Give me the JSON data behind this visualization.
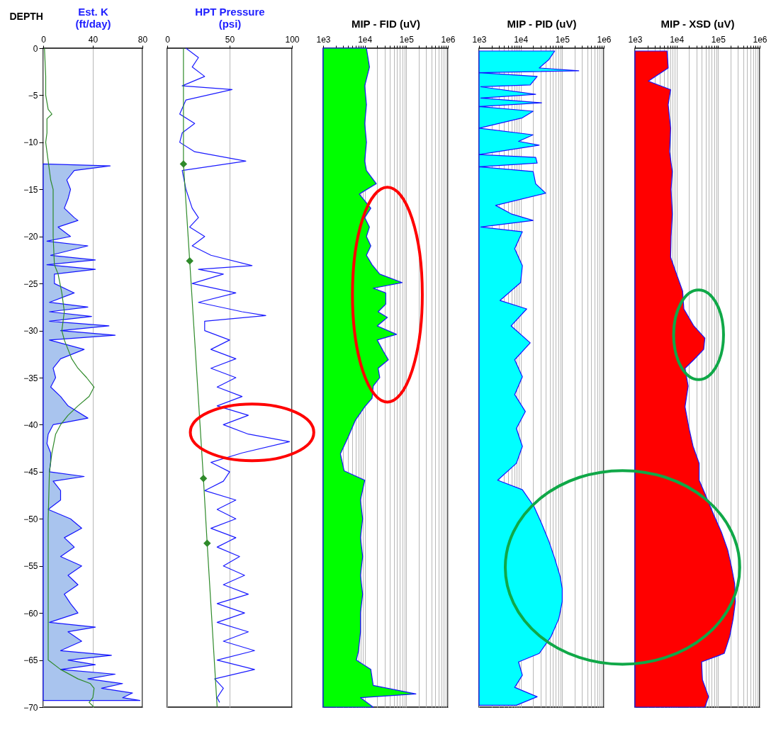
{
  "chart_data": [
    {
      "type": "area",
      "orientation": "horizontal",
      "xlabel": "Est. K\n(ft/day)",
      "ylabel": "DEPTH",
      "xlim": [
        0,
        80
      ],
      "xticks": [
        0,
        40,
        80
      ],
      "ylim": [
        -70,
        0
      ],
      "yticks": [
        0,
        -5,
        -10,
        -15,
        -20,
        -25,
        -30,
        -35,
        -40,
        -45,
        -50,
        -55,
        -60,
        -65,
        -70
      ],
      "grid": "x",
      "series": [
        {
          "color": "#a9c4ee",
          "x": [
            -12.3,
            -12.5,
            -13,
            -14,
            -15,
            -16,
            -17,
            -18,
            -18.3,
            -19,
            -20,
            -20.5,
            -21,
            -22,
            -22.5,
            -23,
            -23.5,
            -24,
            -25,
            -26,
            -27,
            -27.5,
            -28,
            -28.5,
            -29,
            -29.5,
            -30,
            -30.5,
            -31,
            -32,
            -33,
            -34,
            -35,
            -36,
            -37,
            -38,
            -39.3,
            -40,
            -41,
            -42,
            -43,
            -44,
            -45,
            -45.5,
            -46,
            -47,
            -48,
            -49,
            -50,
            -51,
            -52,
            -53,
            -54,
            -55,
            -56,
            -57,
            -58,
            -59,
            -60,
            -61,
            -61.5,
            -62,
            -63,
            -64,
            -64.5,
            -65,
            -65.5,
            -66,
            -66.5,
            -67,
            -67.5,
            -68,
            -68.5,
            -69,
            -69.3
          ],
          "values": [
            0,
            54,
            25,
            19,
            22,
            20,
            17,
            25,
            28,
            12,
            22,
            3,
            36,
            6,
            42,
            3,
            42,
            9,
            9,
            25,
            5,
            36,
            5,
            39,
            5,
            53,
            14,
            58,
            5,
            33,
            14,
            8,
            10,
            6,
            14,
            20,
            36,
            8,
            4,
            3,
            6,
            6,
            5,
            33,
            8,
            14,
            14,
            4,
            22,
            31,
            17,
            25,
            14,
            31,
            20,
            28,
            17,
            22,
            28,
            5,
            42,
            20,
            31,
            14,
            55,
            20,
            42,
            14,
            58,
            36,
            64,
            47,
            72,
            64,
            78
          ]
        },
        {
          "type": "line",
          "color": "#2f8a2a",
          "x": [
            0,
            -3,
            -5,
            -6.5,
            -7,
            -7.5,
            -9,
            -10,
            -12,
            -14,
            -15,
            -17,
            -20,
            -23,
            -24,
            -26,
            -28,
            -30,
            -31,
            -32,
            -33,
            -34,
            -35,
            -36,
            -37,
            -38,
            -39,
            -40,
            -41,
            -43,
            -45,
            -50,
            -55,
            -60,
            -65,
            -66,
            -67,
            -67.5,
            -68,
            -69,
            -69.5,
            -70
          ],
          "values": [
            1,
            2,
            2,
            4,
            7,
            3,
            3,
            2,
            4,
            6,
            8,
            8,
            8,
            9,
            12,
            15,
            17,
            15,
            17,
            20,
            23,
            28,
            35,
            41,
            37,
            28,
            20,
            14,
            10,
            7,
            5,
            4,
            4,
            4,
            4,
            14,
            28,
            38,
            41,
            40,
            37,
            41
          ]
        }
      ]
    },
    {
      "type": "line",
      "orientation": "horizontal",
      "xlabel": "HPT Pressure\n(psi)",
      "xlim": [
        0,
        100
      ],
      "xticks": [
        0,
        50,
        100
      ],
      "ylim": [
        -70,
        0
      ],
      "grid": "x",
      "tick_labels": "x",
      "series": [
        {
          "color": "#1a1aff",
          "x": [
            0,
            -1,
            -2,
            -3,
            -4,
            -4.4,
            -5.5,
            -7,
            -8,
            -9,
            -10,
            -11,
            -12,
            -13,
            -15,
            -17,
            -18,
            -19,
            -20,
            -21,
            -22,
            -23.1,
            -23.5,
            -24,
            -25,
            -26,
            -27,
            -28,
            -28.4,
            -29,
            -30,
            -31,
            -32,
            -33,
            -34,
            -35,
            -36,
            -37,
            -38,
            -39,
            -40,
            -41,
            -41.8,
            -43,
            -44,
            -45,
            -46,
            -47,
            -48,
            -49,
            -50,
            -51,
            -52,
            -53,
            -54,
            -55,
            -56,
            -57,
            -58,
            -59,
            -60,
            -61,
            -62,
            -63,
            -64,
            -65,
            -66,
            -67,
            -68,
            -69,
            -69.5
          ],
          "values": [
            15,
            25,
            20,
            30,
            12,
            52,
            15,
            10,
            22,
            12,
            10,
            22,
            63,
            12,
            15,
            20,
            25,
            18,
            30,
            20,
            35,
            68,
            25,
            45,
            20,
            55,
            25,
            60,
            79,
            30,
            30,
            50,
            35,
            55,
            35,
            55,
            40,
            60,
            40,
            65,
            45,
            65,
            98,
            60,
            35,
            50,
            45,
            30,
            55,
            40,
            55,
            35,
            55,
            40,
            58,
            45,
            62,
            45,
            65,
            40,
            62,
            40,
            65,
            45,
            70,
            40,
            70,
            38,
            45,
            40,
            42
          ]
        },
        {
          "color": "#2f8a2a",
          "x": [
            0,
            -12.3,
            -22.6,
            -45.7,
            -52.6,
            -70
          ],
          "values": [
            13,
            13,
            18,
            29,
            32,
            40
          ]
        },
        {
          "type": "scatter",
          "marker": "diamond",
          "color": "#2f8a2a",
          "x": [
            -12.3,
            -22.6,
            -45.7,
            -52.6
          ],
          "values": [
            13,
            18,
            29,
            32
          ]
        }
      ]
    },
    {
      "type": "area",
      "orientation": "horizontal",
      "log": "x",
      "xlabel": "MIP - FID (uV)",
      "xlim": [
        1000,
        1000000
      ],
      "xticks": [
        {
          "value": 1000,
          "label": "1e3"
        },
        {
          "value": 2000,
          "label": null
        },
        {
          "value": 3000,
          "label": null
        },
        {
          "value": 4000,
          "label": null
        },
        {
          "value": 5000,
          "label": null
        },
        {
          "value": 6000,
          "label": null
        },
        {
          "value": 7000,
          "label": null
        },
        {
          "value": 8000,
          "label": null
        },
        {
          "value": 9000,
          "label": null
        },
        {
          "value": 10000,
          "label": "1e4"
        },
        {
          "value": 20000,
          "label": null
        },
        {
          "value": 30000,
          "label": null
        },
        {
          "value": 40000,
          "label": null
        },
        {
          "value": 50000,
          "label": null
        },
        {
          "value": 60000,
          "label": null
        },
        {
          "value": 70000,
          "label": null
        },
        {
          "value": 80000,
          "label": null
        },
        {
          "value": 90000,
          "label": null
        },
        {
          "value": 100000,
          "label": "1e5"
        },
        {
          "value": 200000,
          "label": null
        },
        {
          "value": 300000,
          "label": null
        },
        {
          "value": 400000,
          "label": null
        },
        {
          "value": 500000,
          "label": null
        },
        {
          "value": 600000,
          "label": null
        },
        {
          "value": 700000,
          "label": null
        },
        {
          "value": 800000,
          "label": null
        },
        {
          "value": 900000,
          "label": null
        },
        {
          "value": 1000000,
          "label": "1e6"
        }
      ],
      "ylim": [
        -70,
        0
      ],
      "grid": "x",
      "tick_labels": "x",
      "series": [
        {
          "color": "#00ff00",
          "x": [
            0,
            -2,
            -4,
            -6,
            -8,
            -10,
            -12,
            -13,
            -14.4,
            -15.5,
            -17,
            -18,
            -19,
            -20,
            -21,
            -22,
            -23,
            -24,
            -24.9,
            -25.5,
            -26,
            -27.2,
            -28,
            -28.6,
            -29.5,
            -30.4,
            -31,
            -32.2,
            -33.1,
            -34,
            -35,
            -35.9,
            -37.2,
            -38.1,
            -39.5,
            -41.3,
            -43.1,
            -44.9,
            -45.9,
            -48,
            -50,
            -52,
            -54,
            -56,
            -58,
            -60,
            -62,
            -64,
            -65,
            -66,
            -67.7,
            -68.6,
            -69,
            -70
          ],
          "values": [
            11000,
            13000,
            10000,
            11000,
            10000,
            11000,
            10000,
            11000,
            19000,
            7400,
            14000,
            10000,
            13000,
            11000,
            14000,
            11000,
            15000,
            23000,
            79000,
            16000,
            32000,
            32000,
            21000,
            35000,
            20000,
            58000,
            20000,
            28000,
            37000,
            21000,
            23000,
            16000,
            15000,
            10000,
            6000,
            4000,
            2600,
            3200,
            10000,
            7900,
            8900,
            7900,
            8900,
            7900,
            8900,
            7900,
            7900,
            7100,
            6300,
            14000,
            16000,
            170000,
            7900,
            16000
          ]
        }
      ]
    },
    {
      "type": "area",
      "orientation": "horizontal",
      "log": "x",
      "xlabel": "MIP - PID (uV)",
      "xlim": [
        1000,
        1000000
      ],
      "xticks": [
        {
          "value": 1000,
          "label": "1e3"
        },
        {
          "value": 2000,
          "label": null
        },
        {
          "value": 3000,
          "label": null
        },
        {
          "value": 4000,
          "label": null
        },
        {
          "value": 5000,
          "label": null
        },
        {
          "value": 6000,
          "label": null
        },
        {
          "value": 7000,
          "label": null
        },
        {
          "value": 8000,
          "label": null
        },
        {
          "value": 9000,
          "label": null
        },
        {
          "value": 10000,
          "label": "1e4"
        },
        {
          "value": 20000,
          "label": null
        },
        {
          "value": 30000,
          "label": null
        },
        {
          "value": 40000,
          "label": null
        },
        {
          "value": 50000,
          "label": null
        },
        {
          "value": 60000,
          "label": null
        },
        {
          "value": 70000,
          "label": null
        },
        {
          "value": 80000,
          "label": null
        },
        {
          "value": 90000,
          "label": null
        },
        {
          "value": 100000,
          "label": "1e5"
        },
        {
          "value": 200000,
          "label": null
        },
        {
          "value": 300000,
          "label": null
        },
        {
          "value": 400000,
          "label": null
        },
        {
          "value": 500000,
          "label": null
        },
        {
          "value": 600000,
          "label": null
        },
        {
          "value": 700000,
          "label": null
        },
        {
          "value": 800000,
          "label": null
        },
        {
          "value": 900000,
          "label": null
        },
        {
          "value": 1000000,
          "label": "1e6"
        }
      ],
      "ylim": [
        -70,
        0
      ],
      "grid": "x",
      "tick_labels": "x",
      "series": [
        {
          "color": "#00ffff",
          "x": [
            -0.3,
            -1.2,
            -2.1,
            -2.4,
            -2.6,
            -3,
            -3.9,
            -4.1,
            -4.9,
            -5.3,
            -5.8,
            -6.2,
            -6.7,
            -7.4,
            -8.5,
            -9.2,
            -9.9,
            -10.3,
            -11.3,
            -11.6,
            -12.2,
            -12.6,
            -13.1,
            -14.4,
            -15.4,
            -16.7,
            -17.6,
            -18.3,
            -19,
            -19.5,
            -21.3,
            -23.1,
            -24.9,
            -26.8,
            -27.7,
            -29.5,
            -31.3,
            -33.1,
            -34.9,
            -36.8,
            -38.6,
            -40.4,
            -42.3,
            -44.1,
            -45.9,
            -46.9,
            -48.7,
            -50.5,
            -52.4,
            -54.2,
            -56.1,
            -57.4,
            -58.8,
            -60.6,
            -62.5,
            -64.3,
            -65.2,
            -66.6,
            -67.9,
            -68.9,
            -69.8
          ],
          "values": [
            66000,
            48000,
            28000,
            250000,
            1000,
            25000,
            17000,
            1100,
            23000,
            1100,
            32000,
            1000,
            20000,
            11000,
            1000,
            20000,
            8900,
            28000,
            1000,
            23000,
            25000,
            1000,
            20000,
            23000,
            40000,
            2500,
            5900,
            20000,
            1100,
            11000,
            7200,
            11000,
            10000,
            3200,
            14000,
            5900,
            17000,
            7200,
            11000,
            7200,
            13000,
            7900,
            11000,
            7900,
            2800,
            11000,
            21000,
            32000,
            48000,
            66000,
            89000,
            100000,
            100000,
            83000,
            54000,
            28000,
            8900,
            11000,
            7200,
            25000,
            7900
          ]
        }
      ]
    },
    {
      "type": "area",
      "orientation": "horizontal",
      "log": "x",
      "xlabel": "MIP - XSD (uV)",
      "xlim": [
        1000,
        1000000
      ],
      "xticks": [
        {
          "value": 1000,
          "label": "1e3"
        },
        {
          "value": 2000,
          "label": null
        },
        {
          "value": 3000,
          "label": null
        },
        {
          "value": 4000,
          "label": null
        },
        {
          "value": 5000,
          "label": null
        },
        {
          "value": 6000,
          "label": null
        },
        {
          "value": 7000,
          "label": null
        },
        {
          "value": 8000,
          "label": null
        },
        {
          "value": 9000,
          "label": null
        },
        {
          "value": 10000,
          "label": "1e4"
        },
        {
          "value": 20000,
          "label": null
        },
        {
          "value": 30000,
          "label": null
        },
        {
          "value": 40000,
          "label": null
        },
        {
          "value": 50000,
          "label": null
        },
        {
          "value": 60000,
          "label": null
        },
        {
          "value": 70000,
          "label": null
        },
        {
          "value": 80000,
          "label": null
        },
        {
          "value": 90000,
          "label": null
        },
        {
          "value": 100000,
          "label": "1e5"
        },
        {
          "value": 200000,
          "label": null
        },
        {
          "value": 300000,
          "label": null
        },
        {
          "value": 400000,
          "label": null
        },
        {
          "value": 500000,
          "label": null
        },
        {
          "value": 600000,
          "label": null
        },
        {
          "value": 700000,
          "label": null
        },
        {
          "value": 800000,
          "label": null
        },
        {
          "value": 900000,
          "label": null
        },
        {
          "value": 1000000,
          "label": "1e6"
        }
      ],
      "ylim": [
        -70,
        0
      ],
      "grid": "x",
      "tick_labels": "x",
      "series": [
        {
          "color": "#ff0000",
          "x": [
            -0.3,
            -2.1,
            -3.5,
            -4.4,
            -6,
            -8.5,
            -11,
            -13.1,
            -15,
            -17.6,
            -20,
            -22.2,
            -24,
            -25.8,
            -27.7,
            -29.5,
            -30.8,
            -32,
            -33.1,
            -34,
            -35.9,
            -38.1,
            -40.4,
            -42.3,
            -44.1,
            -45.9,
            -47.3,
            -49.6,
            -51.4,
            -53.3,
            -55.1,
            -56.9,
            -58.8,
            -60.6,
            -62.5,
            -64.3,
            -65.2,
            -67.1,
            -68.9,
            -70
          ],
          "values": [
            5900,
            6300,
            2100,
            7200,
            6300,
            7200,
            6800,
            7900,
            7400,
            7900,
            7400,
            7200,
            10000,
            14000,
            15000,
            26000,
            48000,
            45000,
            26000,
            16000,
            19000,
            16000,
            20000,
            25000,
            35000,
            35000,
            48000,
            79000,
            120000,
            170000,
            210000,
            250000,
            260000,
            230000,
            190000,
            140000,
            40000,
            42000,
            59000,
            48000
          ]
        }
      ]
    }
  ]
}
